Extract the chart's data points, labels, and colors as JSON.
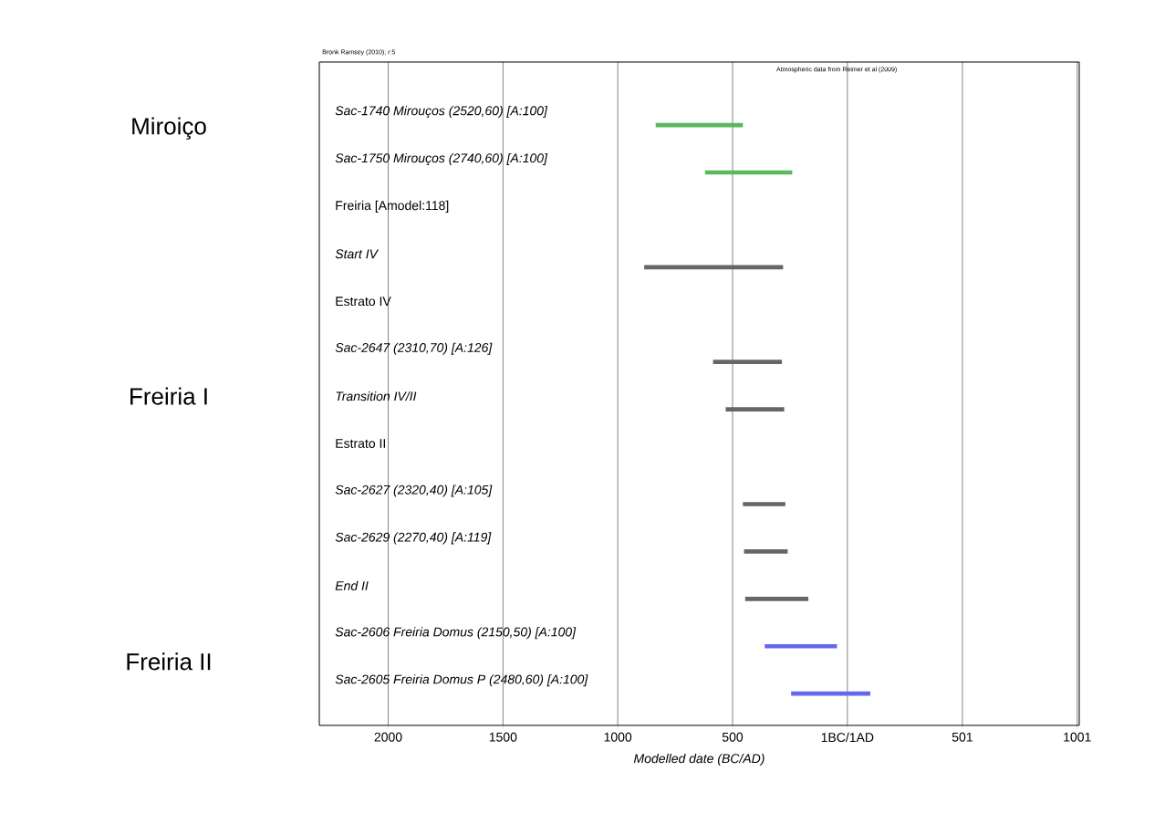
{
  "chart_data": {
    "type": "bar",
    "orientation": "horizontal",
    "xlabel": "Modelled date (BC/AD)",
    "categories": [
      "Sac-1740 Mirouços (2520,60) [A:100]",
      "Sac-1750 Mirouços (2740,60) [A:100]",
      "Freiria [Amodel:118]",
      "Start IV",
      "Estrato IV",
      "Sac-2647 (2310,70) [A:126]",
      "Transition IV/II",
      "Estrato II",
      "Sac-2627 (2320,40) [A:105]",
      "Sac-2629 (2270,40) [A:119]",
      "End II",
      "Sac-2606 Freiria Domus (2150,50) [A:100]",
      "Sac-2605 Freiria Domus P (2480,60) [A:100]"
    ],
    "base": [
      -835,
      -620,
      null,
      -885,
      null,
      -585,
      -530,
      null,
      -455,
      -450,
      -445,
      -360,
      -245
    ],
    "values": [
      380,
      380,
      null,
      605,
      null,
      300,
      255,
      null,
      185,
      190,
      275,
      315,
      345
    ],
    "colors": [
      "#5cb85c",
      "#5cb85c",
      null,
      "#666666",
      null,
      "#666666",
      "#666666",
      null,
      "#666666",
      "#666666",
      "#666666",
      "#6666ee",
      "#6666ee"
    ],
    "xlim": [
      -2300,
      1010
    ],
    "xticks": [
      {
        "value": -2000,
        "label": "2000"
      },
      {
        "value": -1500,
        "label": "1500"
      },
      {
        "value": -1000,
        "label": "1000"
      },
      {
        "value": -500,
        "label": "500"
      },
      {
        "value": 0,
        "label": "1BC/1AD"
      },
      501,
      1001
    ],
    "grid": "x",
    "annotations": [
      "Bronk Ramsey (2010); r:5",
      "Atmospheric data from Reimer et al (2009)",
      "Miroiço",
      "Freiria I",
      "Freiria II"
    ]
  }
}
